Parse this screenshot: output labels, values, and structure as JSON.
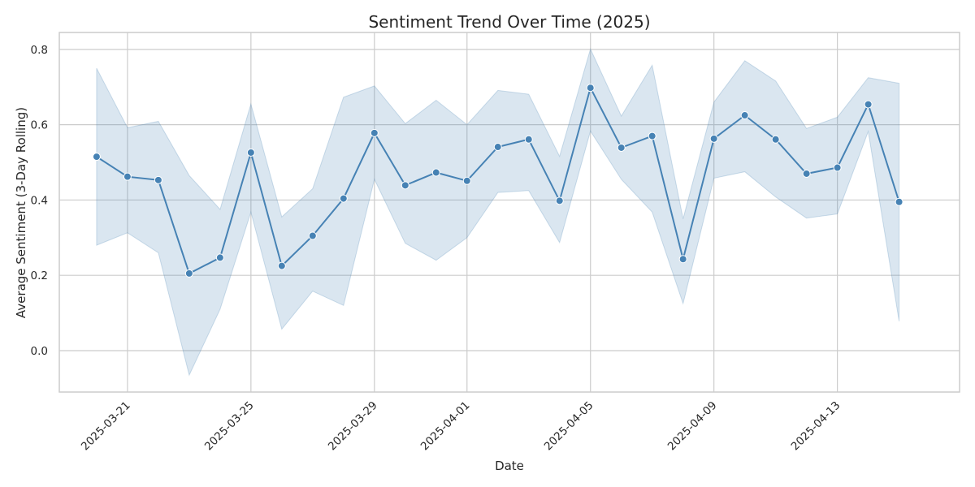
{
  "chart_data": {
    "type": "line",
    "title": "Sentiment Trend Over Time (2025)",
    "xlabel": "Date",
    "ylabel": "Average Sentiment (3-Day Rolling)",
    "ylim": [
      -0.11,
      0.845
    ],
    "xlim": [
      "2025-03-18T19:00",
      "2025-04-16T23:00"
    ],
    "yticks": [
      0.0,
      0.2,
      0.4,
      0.6,
      0.8
    ],
    "ytick_labels": [
      "0.0",
      "0.2",
      "0.4",
      "0.6",
      "0.8"
    ],
    "xticks": [
      "2025-03-21",
      "2025-03-25",
      "2025-03-29",
      "2025-04-01",
      "2025-04-05",
      "2025-04-09",
      "2025-04-13"
    ],
    "xtick_labels": [
      "2025-03-21",
      "2025-03-25",
      "2025-03-29",
      "2025-04-01",
      "2025-04-05",
      "2025-04-09",
      "2025-04-13"
    ],
    "grid": true,
    "line_color": "#4682b4",
    "band_color": "#4682b4",
    "series": [
      {
        "x": [
          "2025-03-20",
          "2025-03-21",
          "2025-03-22",
          "2025-03-23",
          "2025-03-24",
          "2025-03-25",
          "2025-03-26",
          "2025-03-27",
          "2025-03-28",
          "2025-03-29",
          "2025-03-30",
          "2025-03-31",
          "2025-04-01",
          "2025-04-02",
          "2025-04-03",
          "2025-04-04",
          "2025-04-05",
          "2025-04-06",
          "2025-04-07",
          "2025-04-08",
          "2025-04-09",
          "2025-04-10",
          "2025-04-11",
          "2025-04-12",
          "2025-04-13",
          "2025-04-14",
          "2025-04-15"
        ],
        "y": [
          0.515,
          0.462,
          0.453,
          0.205,
          0.247,
          0.526,
          0.225,
          0.305,
          0.404,
          0.578,
          0.439,
          0.473,
          0.451,
          0.541,
          0.561,
          0.398,
          0.698,
          0.539,
          0.57,
          0.243,
          0.563,
          0.625,
          0.561,
          0.47,
          0.486,
          0.654,
          0.395
        ],
        "lower": [
          0.28,
          0.313,
          0.26,
          -0.065,
          0.11,
          0.368,
          0.057,
          0.158,
          0.12,
          0.455,
          0.285,
          0.24,
          0.3,
          0.42,
          0.425,
          0.287,
          0.583,
          0.455,
          0.368,
          0.125,
          0.458,
          0.475,
          0.408,
          0.352,
          0.363,
          0.582,
          0.078
        ],
        "upper": [
          0.75,
          0.592,
          0.609,
          0.465,
          0.375,
          0.655,
          0.355,
          0.43,
          0.673,
          0.703,
          0.603,
          0.665,
          0.6,
          0.691,
          0.681,
          0.516,
          0.801,
          0.623,
          0.758,
          0.35,
          0.66,
          0.77,
          0.716,
          0.59,
          0.62,
          0.725,
          0.71
        ]
      }
    ]
  }
}
